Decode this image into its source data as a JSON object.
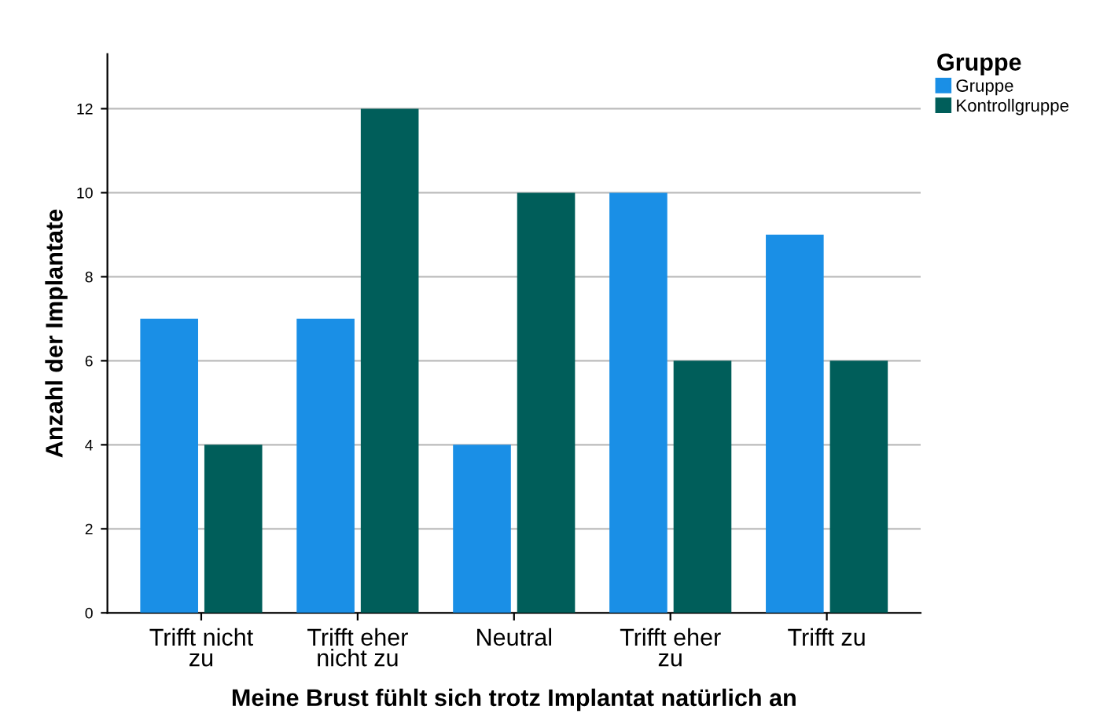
{
  "chart_data": {
    "type": "bar",
    "xlabel": "Meine Brust fühlt sich trotz Implantat natürlich an",
    "ylabel": "Anzahl der Implantate",
    "legend_title": "Gruppe",
    "categories": [
      "Trifft nicht\nzu",
      "Trifft eher\nnicht zu",
      "Neutral",
      "Trifft eher\nzu",
      "Trifft zu"
    ],
    "series": [
      {
        "name": "Gruppe",
        "color": "#1a8fe6",
        "values": [
          7,
          7,
          4,
          10,
          9
        ]
      },
      {
        "name": "Kontrollgruppe",
        "color": "#005e5a",
        "values": [
          4,
          12,
          10,
          6,
          6
        ]
      }
    ],
    "ylim": [
      0,
      13.3
    ],
    "yticks": [
      0,
      2,
      4,
      6,
      8,
      10,
      12
    ],
    "grid": "y",
    "legend": "top right"
  }
}
